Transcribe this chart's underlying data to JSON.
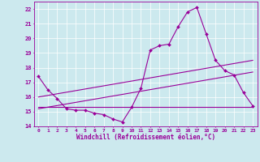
{
  "xlabel": "Windchill (Refroidissement éolien,°C)",
  "bg_color": "#cce9ee",
  "line_color": "#990099",
  "grid_color": "#ffffff",
  "xlim": [
    -0.5,
    23.5
  ],
  "ylim": [
    14,
    22.5
  ],
  "yticks": [
    14,
    15,
    16,
    17,
    18,
    19,
    20,
    21,
    22
  ],
  "xticks": [
    0,
    1,
    2,
    3,
    4,
    5,
    6,
    7,
    8,
    9,
    10,
    11,
    12,
    13,
    14,
    15,
    16,
    17,
    18,
    19,
    20,
    21,
    22,
    23
  ],
  "curve1_x": [
    0,
    1,
    2,
    3,
    4,
    5,
    6,
    7,
    8,
    9,
    10,
    11,
    12,
    13,
    14,
    15,
    16,
    17,
    18,
    19,
    20,
    21,
    22,
    23
  ],
  "curve1_y": [
    17.4,
    16.5,
    15.9,
    15.2,
    15.1,
    15.1,
    14.9,
    14.8,
    14.5,
    14.3,
    15.3,
    16.6,
    19.2,
    19.5,
    19.6,
    20.8,
    21.8,
    22.1,
    20.3,
    18.5,
    17.8,
    17.5,
    16.3,
    15.4
  ],
  "line1_x": [
    0,
    23
  ],
  "line1_y": [
    16.0,
    18.5
  ],
  "line2_x": [
    0,
    23
  ],
  "line2_y": [
    15.2,
    17.7
  ],
  "line3_x": [
    0,
    23
  ],
  "line3_y": [
    15.3,
    15.3
  ]
}
